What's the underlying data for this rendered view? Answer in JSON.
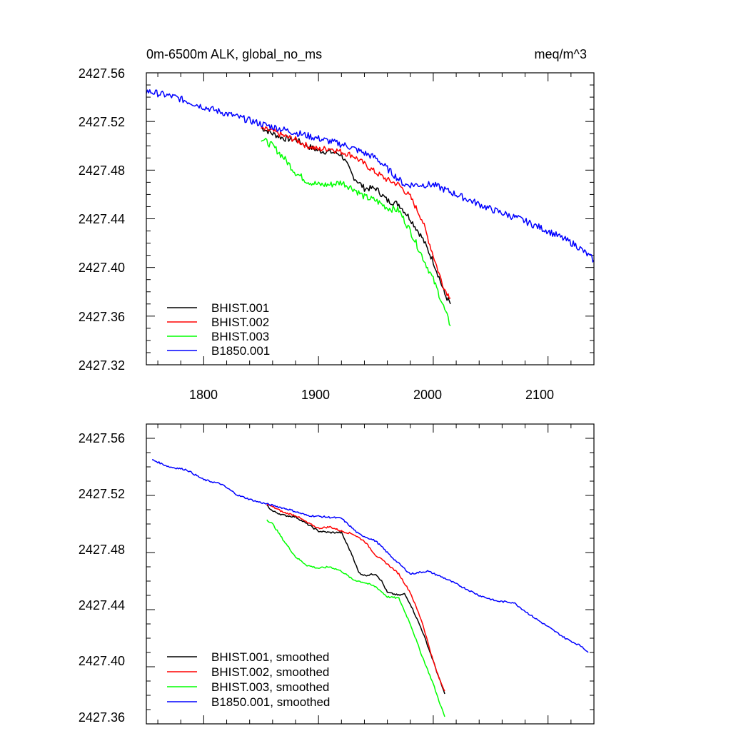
{
  "chart_data": [
    {
      "type": "line",
      "title": "0m-6500m ALK, global_no_ms",
      "units": "meq/m^3",
      "xlim": [
        1750,
        2140
      ],
      "ylim": [
        2427.32,
        2427.56
      ],
      "xticks": [
        1800,
        1900,
        2000,
        2100
      ],
      "yticks": [
        2427.32,
        2427.36,
        2427.4,
        2427.44,
        2427.48,
        2427.52,
        2427.56
      ],
      "ytick_labels": [
        "2427.32",
        "2427.36",
        "2427.40",
        "2427.44",
        "2427.48",
        "2427.52",
        "2427.56"
      ],
      "xtick_labels": [
        "1800",
        "1900",
        "2000",
        "2100"
      ],
      "legend_position": "bottom-left",
      "series": [
        {
          "name": "BHIST.001",
          "color": "#000000",
          "noise": 0.0025,
          "x": [
            1850,
            1860,
            1870,
            1880,
            1890,
            1900,
            1910,
            1920,
            1930,
            1940,
            1950,
            1960,
            1970,
            1980,
            1990,
            2000,
            2005,
            2010,
            2015
          ],
          "y": [
            2427.515,
            2427.51,
            2427.506,
            2427.505,
            2427.5,
            2427.496,
            2427.495,
            2427.493,
            2427.475,
            2427.465,
            2427.465,
            2427.455,
            2427.452,
            2427.44,
            2427.425,
            2427.405,
            2427.392,
            2427.378,
            2427.37
          ]
        },
        {
          "name": "BHIST.002",
          "color": "#ff0000",
          "noise": 0.0025,
          "x": [
            1850,
            1860,
            1870,
            1880,
            1890,
            1900,
            1910,
            1920,
            1930,
            1940,
            1950,
            1960,
            1970,
            1980,
            1990,
            2000,
            2005,
            2010,
            2015
          ],
          "y": [
            2427.514,
            2427.512,
            2427.508,
            2427.505,
            2427.5,
            2427.497,
            2427.498,
            2427.495,
            2427.492,
            2427.485,
            2427.478,
            2427.472,
            2427.468,
            2427.458,
            2427.44,
            2427.41,
            2427.395,
            2427.382,
            2427.375
          ]
        },
        {
          "name": "BHIST.003",
          "color": "#00ff00",
          "noise": 0.0028,
          "x": [
            1850,
            1860,
            1870,
            1880,
            1890,
            1900,
            1910,
            1920,
            1930,
            1940,
            1950,
            1960,
            1970,
            1980,
            1990,
            2000,
            2005,
            2010,
            2015
          ],
          "y": [
            2427.506,
            2427.5,
            2427.49,
            2427.478,
            2427.471,
            2427.468,
            2427.468,
            2427.47,
            2427.465,
            2427.458,
            2427.455,
            2427.449,
            2427.447,
            2427.43,
            2427.41,
            2427.39,
            2427.378,
            2427.365,
            2427.352
          ]
        },
        {
          "name": "B1850.001",
          "color": "#0000ff",
          "noise": 0.0028,
          "x": [
            1750,
            1775,
            1800,
            1825,
            1850,
            1875,
            1900,
            1925,
            1950,
            1975,
            2000,
            2025,
            2050,
            2075,
            2100,
            2125,
            2140
          ],
          "y": [
            2427.545,
            2427.54,
            2427.532,
            2427.525,
            2427.518,
            2427.512,
            2427.506,
            2427.5,
            2427.49,
            2427.468,
            2427.468,
            2427.458,
            2427.448,
            2427.44,
            2427.43,
            2427.418,
            2427.406
          ]
        }
      ]
    },
    {
      "type": "line",
      "xlim": [
        1750,
        2140
      ],
      "ylim": [
        2427.36,
        2427.57
      ],
      "yticks": [
        2427.36,
        2427.4,
        2427.44,
        2427.48,
        2427.52,
        2427.56
      ],
      "ytick_labels": [
        "2427.36",
        "2427.40",
        "2427.44",
        "2427.48",
        "2427.52",
        "2427.56"
      ],
      "xticks": [
        1800,
        1900,
        2000,
        2100
      ],
      "legend_position": "bottom-left",
      "series": [
        {
          "name": "BHIST.001, smoothed",
          "color": "#000000",
          "noise": 0.0006,
          "x": [
            1855,
            1860,
            1870,
            1880,
            1890,
            1900,
            1910,
            1920,
            1930,
            1935,
            1940,
            1950,
            1955,
            1960,
            1970,
            1975,
            1980,
            1990,
            2000,
            2005,
            2010
          ],
          "y": [
            2427.513,
            2427.509,
            2427.506,
            2427.505,
            2427.5,
            2427.495,
            2427.494,
            2427.494,
            2427.477,
            2427.466,
            2427.464,
            2427.465,
            2427.46,
            2427.452,
            2427.45,
            2427.451,
            2427.444,
            2427.426,
            2427.404,
            2427.392,
            2427.381
          ]
        },
        {
          "name": "BHIST.002, smoothed",
          "color": "#ff0000",
          "noise": 0.0006,
          "x": [
            1855,
            1860,
            1870,
            1880,
            1890,
            1900,
            1910,
            1920,
            1930,
            1940,
            1950,
            1960,
            1970,
            1980,
            1990,
            2000,
            2005,
            2010
          ],
          "y": [
            2427.514,
            2427.512,
            2427.508,
            2427.506,
            2427.501,
            2427.497,
            2427.498,
            2427.495,
            2427.493,
            2427.488,
            2427.478,
            2427.472,
            2427.465,
            2427.452,
            2427.432,
            2427.404,
            2427.392,
            2427.383
          ]
        },
        {
          "name": "BHIST.003, smoothed",
          "color": "#00ff00",
          "noise": 0.0006,
          "x": [
            1855,
            1860,
            1870,
            1880,
            1890,
            1900,
            1910,
            1920,
            1930,
            1940,
            1950,
            1960,
            1970,
            1980,
            1990,
            2000,
            2005,
            2010
          ],
          "y": [
            2427.503,
            2427.5,
            2427.488,
            2427.477,
            2427.471,
            2427.469,
            2427.47,
            2427.467,
            2427.461,
            2427.459,
            2427.456,
            2427.449,
            2427.448,
            2427.43,
            2427.408,
            2427.388,
            2427.376,
            2427.365
          ]
        },
        {
          "name": "B1850.001, smoothed",
          "color": "#0000ff",
          "noise": 0.0006,
          "x": [
            1755,
            1770,
            1785,
            1800,
            1815,
            1830,
            1845,
            1860,
            1875,
            1890,
            1905,
            1920,
            1935,
            1950,
            1965,
            1980,
            1995,
            2010,
            2025,
            2040,
            2055,
            2070,
            2085,
            2100,
            2115,
            2130,
            2135
          ],
          "y": [
            2427.545,
            2427.54,
            2427.538,
            2427.531,
            2427.528,
            2427.52,
            2427.516,
            2427.513,
            2427.51,
            2427.506,
            2427.505,
            2427.504,
            2427.493,
            2427.488,
            2427.476,
            2427.465,
            2427.467,
            2427.462,
            2427.456,
            2427.45,
            2427.446,
            2427.445,
            2427.436,
            2427.428,
            2427.42,
            2427.414,
            2427.41
          ]
        }
      ]
    }
  ]
}
